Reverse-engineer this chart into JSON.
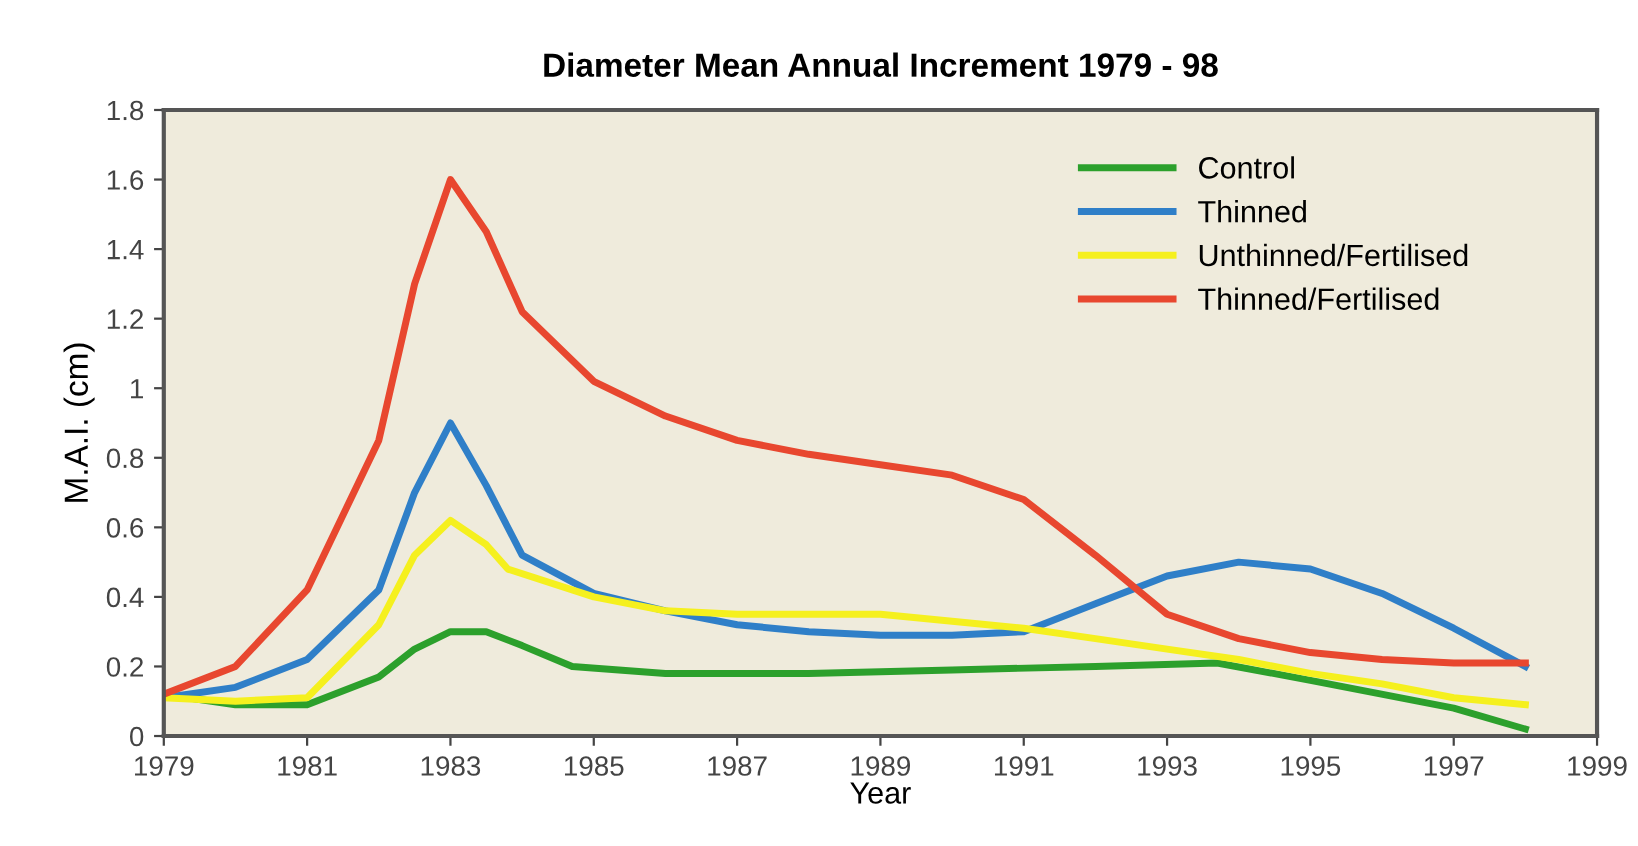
{
  "chart_data": {
    "type": "line",
    "title": "Diameter Mean Annual Increment 1979 - 98",
    "xlabel": "Year",
    "ylabel": "M.A.I. (cm)",
    "xlim": [
      1979,
      1999
    ],
    "xticks": [
      1979,
      1981,
      1983,
      1985,
      1987,
      1989,
      1991,
      1993,
      1995,
      1997,
      1999
    ],
    "ylim": [
      0,
      1.8
    ],
    "yticks": [
      {
        "value": 0,
        "label": "0"
      },
      {
        "value": 0.2,
        "label": "0.2"
      },
      {
        "value": 0.4,
        "label": "0.4"
      },
      {
        "value": 0.6,
        "label": "0.6"
      },
      {
        "value": 0.8,
        "label": "0.8"
      },
      {
        "value": 1,
        "label": "1"
      },
      {
        "value": 1.2,
        "label": "1.2"
      },
      {
        "value": 1.4,
        "label": "1.4"
      },
      {
        "value": 1.6,
        "label": "1.6"
      },
      {
        "value": 1.8,
        "label": "1.8"
      }
    ],
    "grid": false,
    "legend": "top right",
    "marker": "none",
    "line_style": "solid",
    "series": [
      {
        "name": "Control",
        "color": "#2ca02c",
        "x": [
          1979,
          1980,
          1981,
          1982,
          1982.5,
          1983,
          1983.5,
          1984,
          1984.7,
          1986,
          1988,
          1990,
          1992,
          1993.7,
          1995,
          1997,
          1998
        ],
        "values": [
          0.12,
          0.09,
          0.09,
          0.17,
          0.25,
          0.3,
          0.3,
          0.26,
          0.2,
          0.18,
          0.18,
          0.19,
          0.2,
          0.21,
          0.16,
          0.08,
          0.02
        ]
      },
      {
        "name": "Thinned",
        "color": "#2f7fc8",
        "x": [
          1979,
          1980,
          1981,
          1982,
          1982.5,
          1983,
          1983.5,
          1984,
          1985,
          1986,
          1987,
          1988,
          1989,
          1990,
          1991,
          1992,
          1993,
          1994,
          1995,
          1996,
          1997,
          1998
        ],
        "values": [
          0.11,
          0.14,
          0.22,
          0.42,
          0.7,
          0.9,
          0.72,
          0.52,
          0.41,
          0.36,
          0.32,
          0.3,
          0.29,
          0.29,
          0.3,
          0.38,
          0.46,
          0.5,
          0.48,
          0.41,
          0.31,
          0.2
        ]
      },
      {
        "name": "Unthinned/Fertilised",
        "color": "#f5f01e",
        "x": [
          1979,
          1980,
          1981,
          1982,
          1982.5,
          1983,
          1983.5,
          1983.8,
          1985,
          1986,
          1987,
          1988,
          1989,
          1990,
          1991,
          1992,
          1993,
          1994,
          1995,
          1996,
          1997,
          1998
        ],
        "values": [
          0.11,
          0.1,
          0.11,
          0.32,
          0.52,
          0.62,
          0.55,
          0.48,
          0.4,
          0.36,
          0.35,
          0.35,
          0.35,
          0.33,
          0.31,
          0.28,
          0.25,
          0.22,
          0.18,
          0.15,
          0.11,
          0.09
        ]
      },
      {
        "name": "Thinned/Fertilised",
        "color": "#e8472f",
        "x": [
          1979,
          1980,
          1981,
          1982,
          1982.5,
          1983,
          1983.5,
          1984,
          1985,
          1986,
          1987,
          1988,
          1989,
          1990,
          1991,
          1992,
          1993,
          1994,
          1995,
          1996,
          1997,
          1998
        ],
        "values": [
          0.12,
          0.2,
          0.42,
          0.85,
          1.3,
          1.6,
          1.45,
          1.22,
          1.02,
          0.92,
          0.85,
          0.81,
          0.78,
          0.75,
          0.68,
          0.52,
          0.35,
          0.28,
          0.24,
          0.22,
          0.21,
          0.21
        ]
      }
    ]
  }
}
